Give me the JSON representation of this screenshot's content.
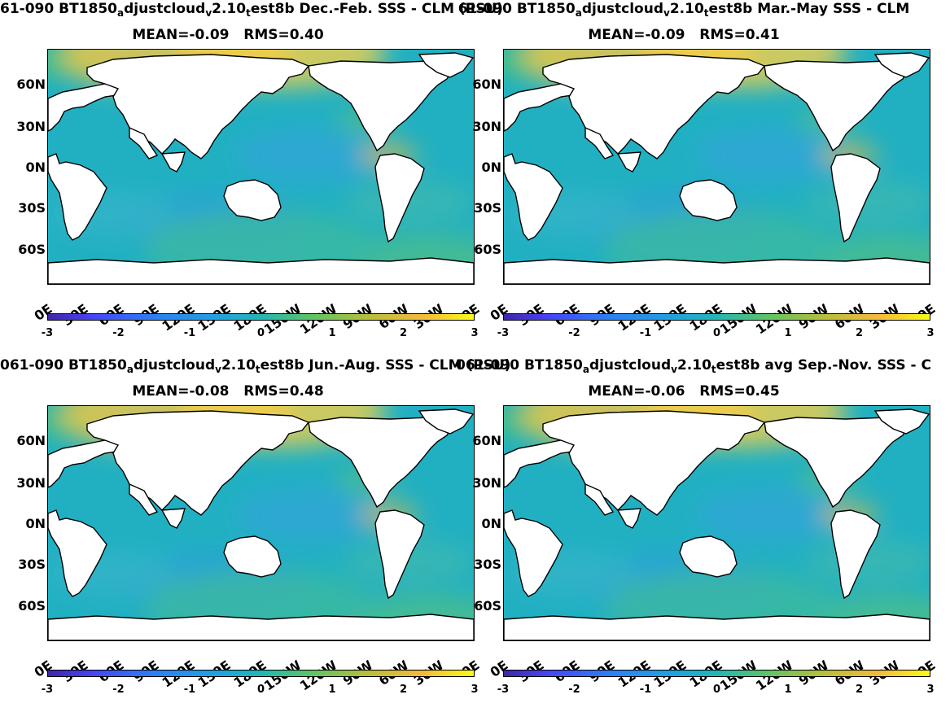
{
  "panels": [
    {
      "title_run": "61-090 BT1850",
      "title_sub1": "a",
      "title_mid": "djustcloud",
      "title_sub2": "v",
      "title_mid2": "2.10",
      "title_sub3": "t",
      "title_tail": "est8b  Dec.-Feb. SSS - CLM (PSU)",
      "stats": "MEAN=-0.09   RMS=0.40"
    },
    {
      "title_run": "61-090 BT1850",
      "title_sub1": "a",
      "title_mid": "djustcloud",
      "title_sub2": "v",
      "title_mid2": "2.10",
      "title_sub3": "t",
      "title_tail": "est8b Mar.-May SSS - CLM",
      "stats": "MEAN=-0.09   RMS=0.41"
    },
    {
      "title_run": "061-090 BT1850",
      "title_sub1": "a",
      "title_mid": "djustcloud",
      "title_sub2": "v",
      "title_mid2": "2.10",
      "title_sub3": "t",
      "title_tail": "est8b Jun.-Aug. SSS - CLM (PSU)",
      "stats": "MEAN=-0.08   RMS=0.48"
    },
    {
      "title_run": "061-090 BT1850",
      "title_sub1": "a",
      "title_mid": "djustcloud",
      "title_sub2": "v",
      "title_mid2": "2.10",
      "title_sub3": "t",
      "title_tail": "est8b avg Sep.-Nov. SSS - C",
      "stats": "MEAN=-0.06   RMS=0.45"
    }
  ],
  "lat_ticks": [
    "60N",
    "30N",
    "0N",
    "30S",
    "60S"
  ],
  "lon_ticks": [
    "0E",
    "30E",
    "60E",
    "90E",
    "120E",
    "150E",
    "180E",
    "150W",
    "120W",
    "90W",
    "60W",
    "30W",
    "0E"
  ],
  "colorbar_ticks": [
    "-3",
    "-2",
    "-1",
    "0",
    "1",
    "2",
    "3"
  ],
  "colorbar_range": [
    -3,
    3
  ],
  "colormap": "parula",
  "colors": {
    "ocean_base": "#21b0c2",
    "land": "#ffffff",
    "coast": "#000000"
  }
}
